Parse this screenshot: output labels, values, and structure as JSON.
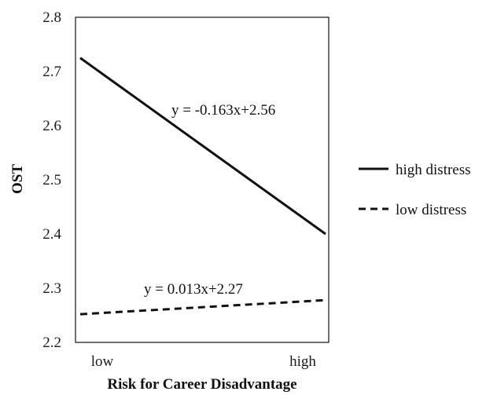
{
  "chart_data": {
    "type": "line",
    "title": "",
    "xlabel": "Risk for Career Disadvantage",
    "ylabel": "OST",
    "categories": [
      "low",
      "high"
    ],
    "ylim": [
      2.2,
      2.8
    ],
    "yticks": [
      "2.2",
      "2.3",
      "2.4",
      "2.5",
      "2.6",
      "2.7",
      "2.8"
    ],
    "grid": false,
    "legend_position": "right",
    "series": [
      {
        "name": "high distress",
        "values": [
          2.725,
          2.4
        ],
        "line_style": "solid",
        "color": "#111111",
        "equation": "y = -0.163x+2.56"
      },
      {
        "name": "low distress",
        "values": [
          2.252,
          2.278
        ],
        "line_style": "dashed",
        "color": "#111111",
        "equation": "y = 0.013x+2.27"
      }
    ]
  }
}
